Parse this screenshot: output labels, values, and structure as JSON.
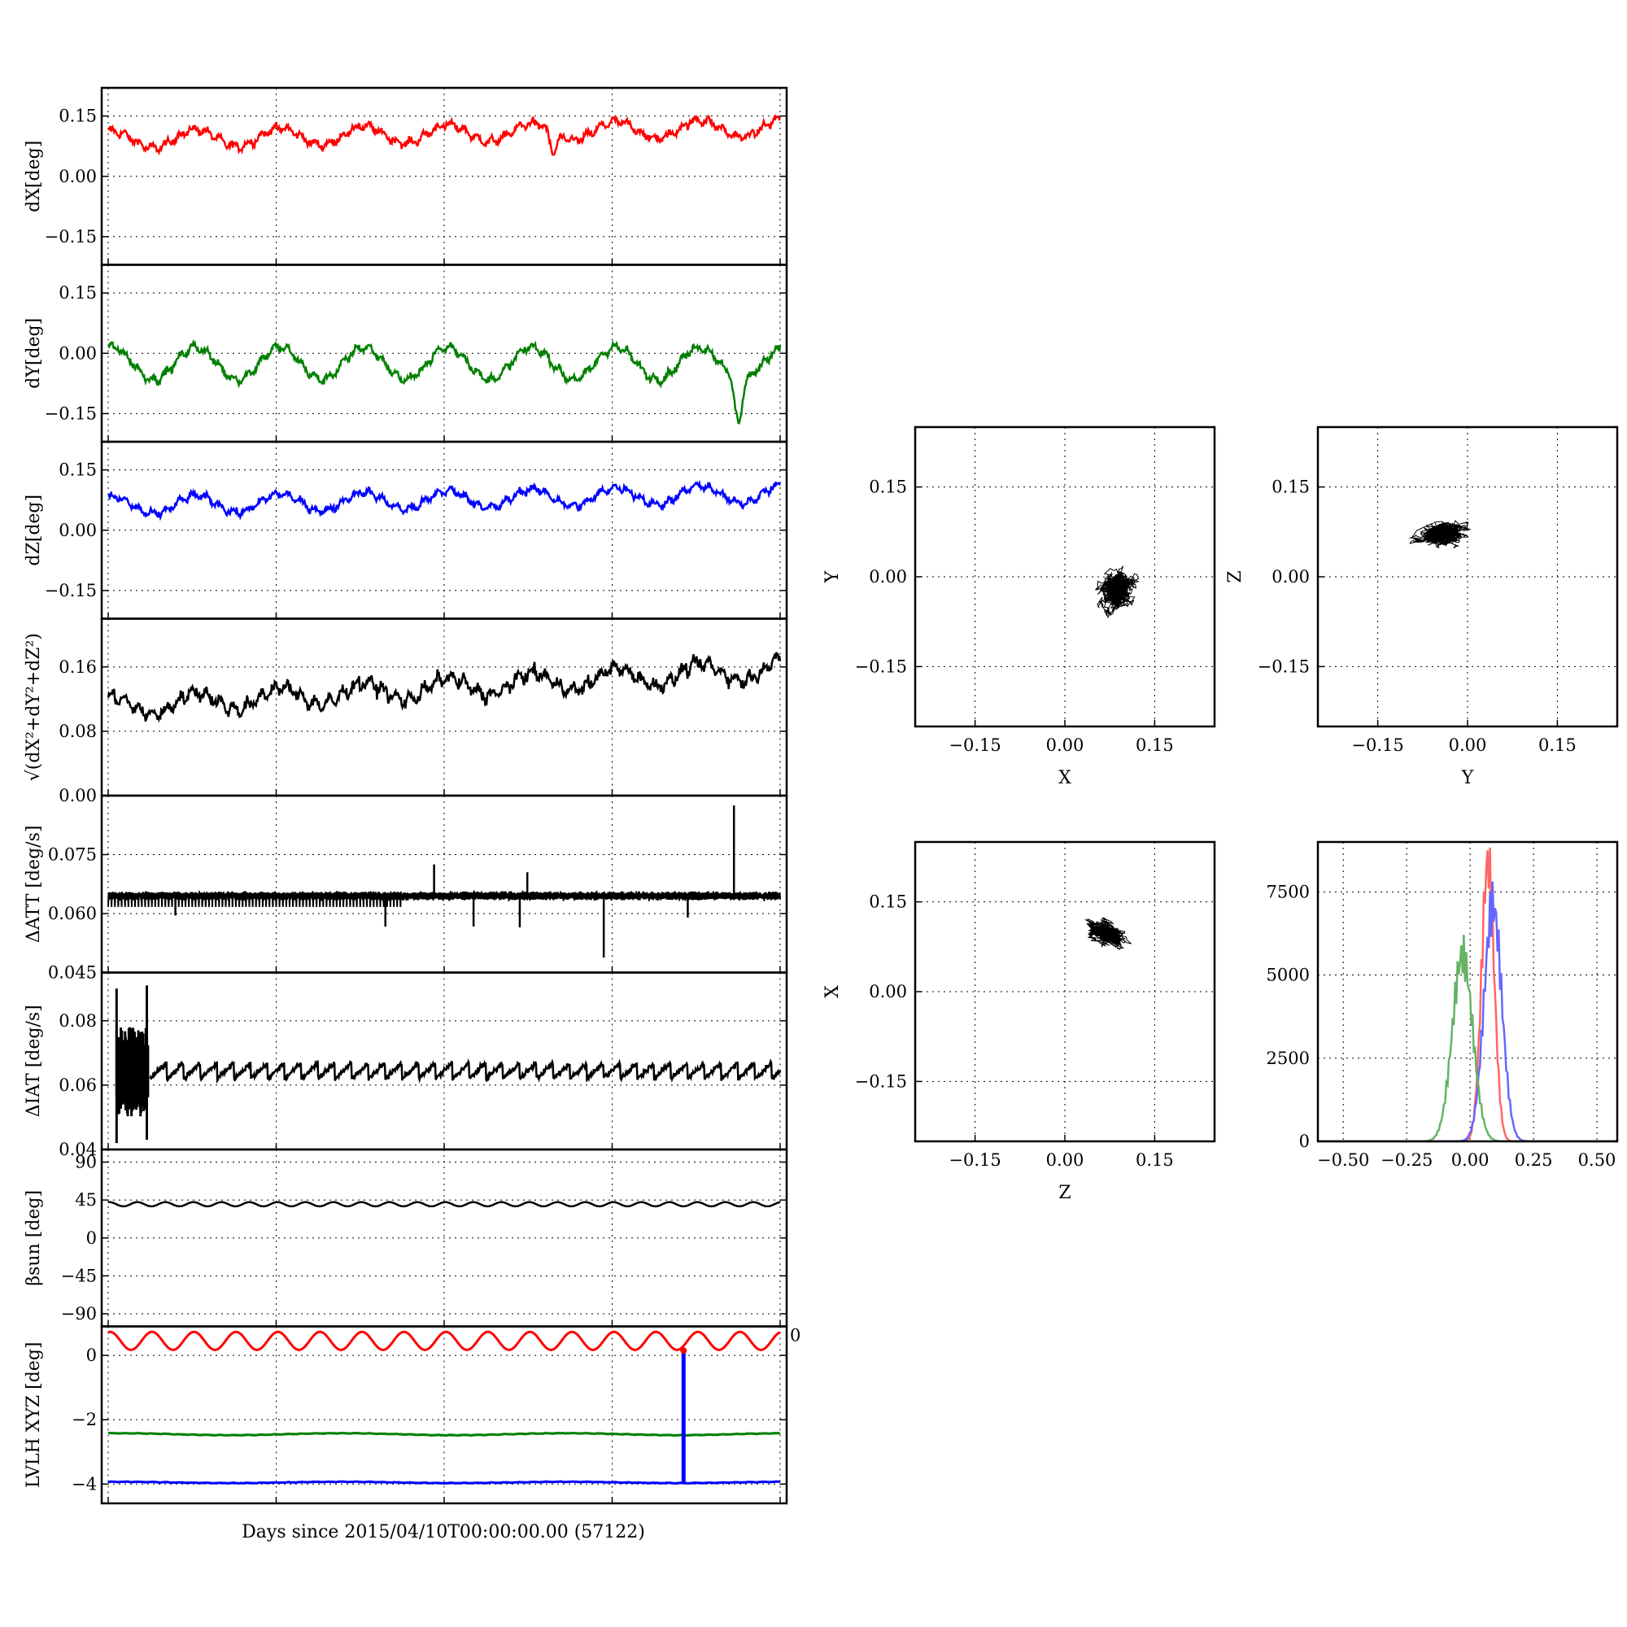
{
  "figure": {
    "xlabel": "Days since 2015/04/10T00:00:00.00 (57122)"
  },
  "chart_data": [
    {
      "id": "dX",
      "type": "line",
      "ylabel": "dX[deg]",
      "ylim": [
        -0.22,
        0.22
      ],
      "yticks": [
        "0.15",
        "0.00",
        "−0.15"
      ],
      "yvals": [
        0.15,
        0,
        -0.15
      ],
      "xlim": [
        0,
        80
      ],
      "color": "#ff0000",
      "baseline": 0.09,
      "amplitude": 0.022,
      "trend": 0.0004,
      "periods": 8.0,
      "noise": 0.012,
      "dips": [
        [
          53,
          -0.05
        ]
      ]
    },
    {
      "id": "dY",
      "type": "line",
      "ylabel": "dY[deg]",
      "ylim": [
        -0.22,
        0.22
      ],
      "yticks": [
        "0.15",
        "0.00",
        "−0.15"
      ],
      "yvals": [
        0.15,
        0,
        -0.15
      ],
      "xlim": [
        0,
        80
      ],
      "color": "#008000",
      "baseline": -0.025,
      "amplitude": 0.04,
      "trend": 0.0,
      "periods": 8.0,
      "noise": 0.012,
      "dips": [
        [
          75,
          -0.11
        ]
      ]
    },
    {
      "id": "dZ",
      "type": "line",
      "ylabel": "dZ[deg]",
      "ylim": [
        -0.22,
        0.22
      ],
      "yticks": [
        "0.15",
        "0.00",
        "−0.15"
      ],
      "yvals": [
        0.15,
        0,
        -0.15
      ],
      "xlim": [
        0,
        80
      ],
      "color": "#0000ff",
      "baseline": 0.06,
      "amplitude": 0.022,
      "trend": 0.0004,
      "periods": 8.0,
      "noise": 0.011,
      "dips": []
    },
    {
      "id": "dR",
      "type": "line",
      "ylabel": "√(dX²+dY²+dZ²)",
      "ylim": [
        0,
        0.22
      ],
      "yticks": [
        "0.16",
        "0.08",
        "0.00"
      ],
      "yvals": [
        0.16,
        0.08,
        0
      ],
      "xlim": [
        0,
        80
      ],
      "color": "#000000",
      "baseline": 0.11,
      "amplitude": 0.012,
      "trend": 0.0006,
      "periods": 8.0,
      "noise": 0.01,
      "dips": []
    },
    {
      "id": "dATT",
      "type": "line",
      "ylabel": "ΔATT [deg/s]",
      "ylim": [
        0.045,
        0.09
      ],
      "yticks": [
        "0.075",
        "0.060",
        "0.045"
      ],
      "yvals": [
        0.075,
        0.06,
        0.045
      ],
      "xlim": [
        0,
        80
      ],
      "color": "#000000",
      "baseline": 0.0645,
      "spikes": [
        [
          38.8,
          0.0725
        ],
        [
          49.9,
          0.0705
        ],
        [
          74.5,
          0.0875
        ],
        [
          8,
          0.0595
        ],
        [
          33,
          0.0567
        ],
        [
          43.5,
          0.0567
        ],
        [
          49,
          0.0565
        ],
        [
          59,
          0.0488
        ],
        [
          69,
          0.059
        ]
      ]
    },
    {
      "id": "dIAT",
      "type": "line",
      "ylabel": "ΔIAT [deg/s]",
      "ylim": [
        0.04,
        0.095
      ],
      "yticks": [
        "0.08",
        "0.06",
        "0.04"
      ],
      "yvals": [
        0.08,
        0.06,
        0.04
      ],
      "xlim": [
        0,
        80
      ],
      "color": "#000000",
      "baseline": 0.065,
      "periods": 40
    },
    {
      "id": "beta",
      "type": "line",
      "ylabel": "βsun [deg]",
      "ylim": [
        -105,
        105
      ],
      "yticks": [
        "90",
        "45",
        "0",
        "−45",
        "−90"
      ],
      "yvals": [
        90,
        45,
        0,
        -45,
        -90
      ],
      "xlim": [
        0,
        80
      ],
      "color": "#000000",
      "baseline": 40,
      "amplitude": 2.5,
      "periods": 24
    },
    {
      "id": "lvlh",
      "type": "line",
      "ylabel": "LVLH XYZ [deg]",
      "ylim": [
        -4.6,
        0.9
      ],
      "yticks": [
        "0",
        "−2",
        "−4"
      ],
      "yvals": [
        0,
        -2,
        -4
      ],
      "xlim": [
        0,
        80
      ],
      "right_tick": "0",
      "series": [
        {
          "color": "#ff0000",
          "baseline": 0.45,
          "amplitude": 0.28,
          "periods": 16
        },
        {
          "color": "#008000",
          "baseline": -2.45,
          "amplitude": 0.03,
          "periods": 3
        },
        {
          "color": "#0000ff",
          "baseline": -3.95,
          "amplitude": 0.02,
          "periods": 3
        }
      ],
      "spike": [
        68.5,
        -3.95,
        0.15
      ]
    },
    {
      "id": "xy",
      "type": "scatter",
      "xlabel": "X",
      "ylabel": "Y",
      "xlim": [
        -0.25,
        0.25
      ],
      "ylim": [
        -0.25,
        0.25
      ],
      "ticks": [
        "−0.15",
        "0.00",
        "0.15"
      ],
      "tvals": [
        -0.15,
        0,
        0.15
      ],
      "center": [
        0.09,
        -0.02
      ],
      "spread": [
        0.04,
        0.05
      ],
      "tilt": 0.2
    },
    {
      "id": "yz",
      "type": "scatter",
      "xlabel": "Y",
      "ylabel": "Z",
      "xlim": [
        -0.25,
        0.25
      ],
      "ylim": [
        -0.25,
        0.25
      ],
      "ticks": [
        "−0.15",
        "0.00",
        "0.15"
      ],
      "tvals": [
        -0.15,
        0,
        0.15
      ],
      "center": [
        -0.04,
        0.075
      ],
      "spread": [
        0.06,
        0.03
      ],
      "tilt": 0.3
    },
    {
      "id": "zx",
      "type": "scatter",
      "xlabel": "Z",
      "ylabel": "X",
      "xlim": [
        -0.25,
        0.25
      ],
      "ylim": [
        -0.25,
        0.25
      ],
      "ticks": [
        "−0.15",
        "0.00",
        "0.15"
      ],
      "tvals": [
        -0.15,
        0,
        0.15
      ],
      "center": [
        0.07,
        0.1
      ],
      "spread": [
        0.04,
        0.03
      ],
      "tilt": -0.7
    },
    {
      "id": "hist",
      "type": "histogram",
      "xlim": [
        -0.6,
        0.58
      ],
      "ylim": [
        0,
        9000
      ],
      "xticks": [
        "−0.50",
        "−0.25",
        "0.00",
        "0.25",
        "0.50"
      ],
      "xvals": [
        -0.5,
        -0.25,
        0,
        0.25,
        0.5
      ],
      "yticks": [
        "7500",
        "5000",
        "2500",
        "0"
      ],
      "yvals": [
        7500,
        5000,
        2500,
        0
      ],
      "series": [
        {
          "color": "#ff6666",
          "center": 0.07,
          "width": 0.025,
          "peak": 8400
        },
        {
          "color": "#6666ff",
          "center": 0.09,
          "width": 0.035,
          "peak": 7100
        },
        {
          "color": "#66b366",
          "center": -0.03,
          "width": 0.04,
          "peak": 5600
        }
      ]
    }
  ]
}
